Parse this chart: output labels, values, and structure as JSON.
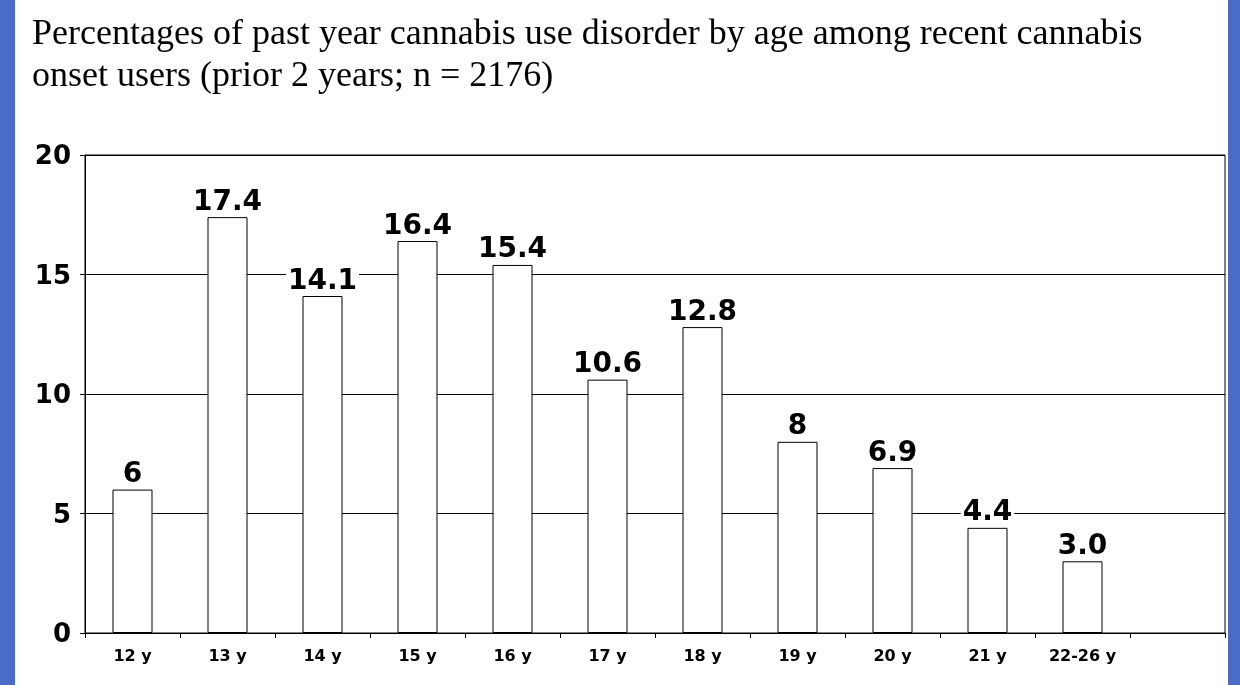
{
  "chart_data": {
    "type": "bar",
    "title": "Percentages of past year cannabis use disorder by age among recent cannabis onset users (prior 2 years; n = 2176)",
    "categories": [
      "12 y",
      "13 y",
      "14 y",
      "15 y",
      "16 y",
      "17 y",
      "18 y",
      "19 y",
      "20 y",
      "21 y",
      "22-26 y",
      null
    ],
    "values": [
      6,
      17.4,
      14.1,
      16.4,
      15.4,
      10.6,
      12.8,
      8,
      6.9,
      4.4,
      3.0,
      null
    ],
    "value_labels": [
      "6",
      "17.4",
      "14.1",
      "16.4",
      "15.4",
      "10.6",
      "12.8",
      "8",
      "6.9",
      "4.4",
      "3.0",
      null
    ],
    "color": "#ffffff",
    "ylim": [
      0,
      20
    ],
    "yticks": [
      0,
      5,
      10,
      15,
      20
    ],
    "grid": "y"
  }
}
